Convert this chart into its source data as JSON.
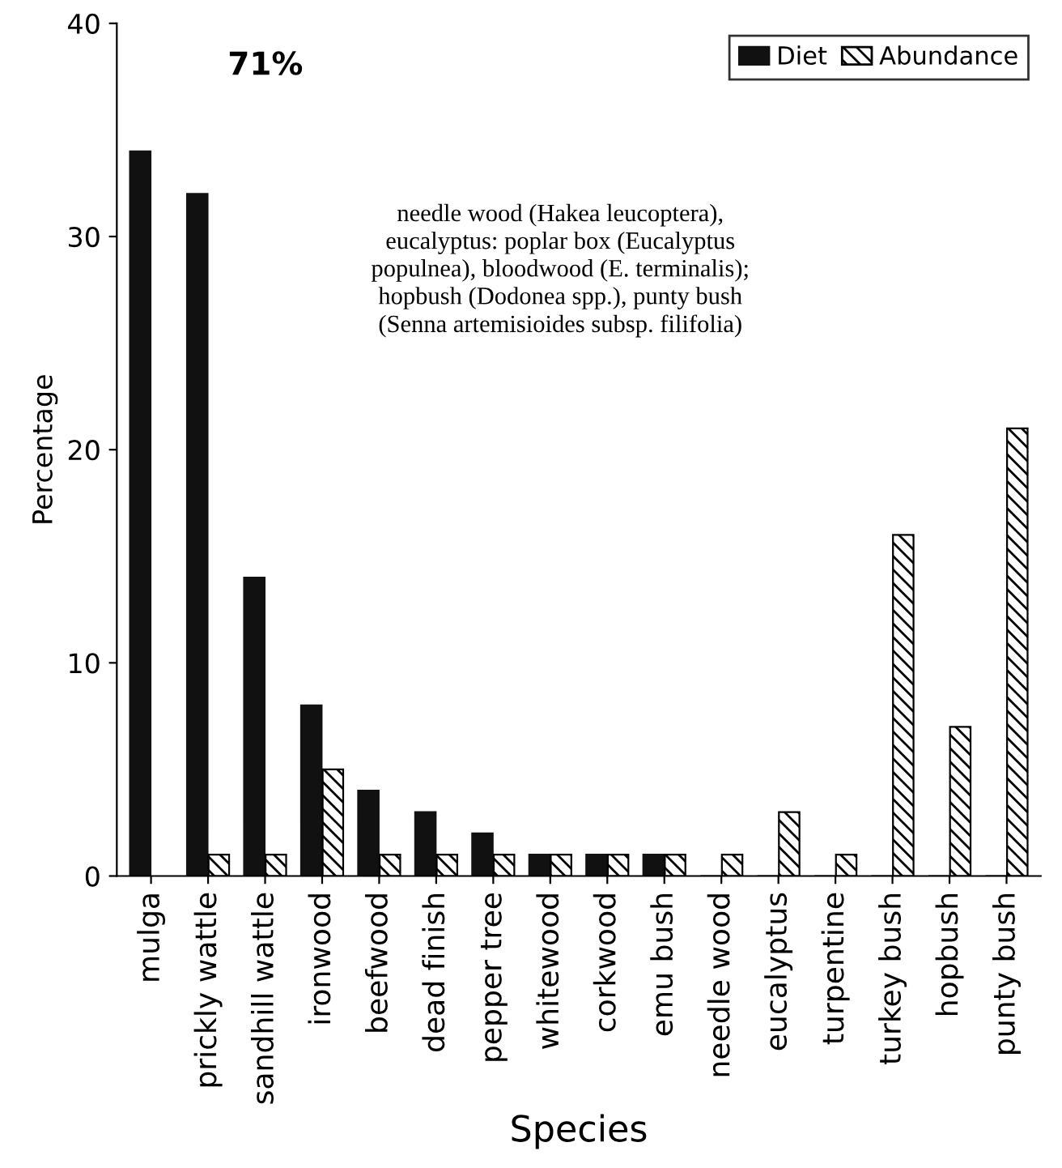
{
  "chart_data": {
    "type": "bar",
    "xlabel": "Species",
    "ylabel": "Percentage",
    "categories": [
      "mulga",
      "prickly wattle",
      "sandhill wattle",
      "ironwood",
      "beefwood",
      "dead finish",
      "pepper tree",
      "whitewood",
      "corkwood",
      "emu bush",
      "needle wood",
      "eucalyptus",
      "turpentine",
      "turkey bush",
      "hopbush",
      "punty bush"
    ],
    "series": [
      {
        "name": "Diet",
        "color": "#111111",
        "values": [
          34,
          32,
          14,
          8,
          4,
          3,
          2,
          1,
          1,
          1,
          0,
          0,
          0,
          0,
          0,
          0
        ]
      },
      {
        "name": "Abundance",
        "color": "#000000",
        "values": [
          null,
          1,
          1,
          5,
          1,
          1,
          1,
          1,
          1,
          1,
          1,
          3,
          1,
          16,
          7,
          21
        ]
      }
    ],
    "ylim": [
      0,
      40
    ],
    "yticks": [
      0,
      10,
      20,
      30,
      40
    ],
    "grid": false,
    "legend": "top right",
    "annotations": [
      "71%",
      "needle wood (Hakea leucoptera),\neucalyptus: poplar box (Eucalyptus\npopulnea), bloodwood (E. terminalis);\nhopbush (Dodonea spp.), punty bush\n(Senna artemisioides subsp. filifolia)"
    ]
  }
}
